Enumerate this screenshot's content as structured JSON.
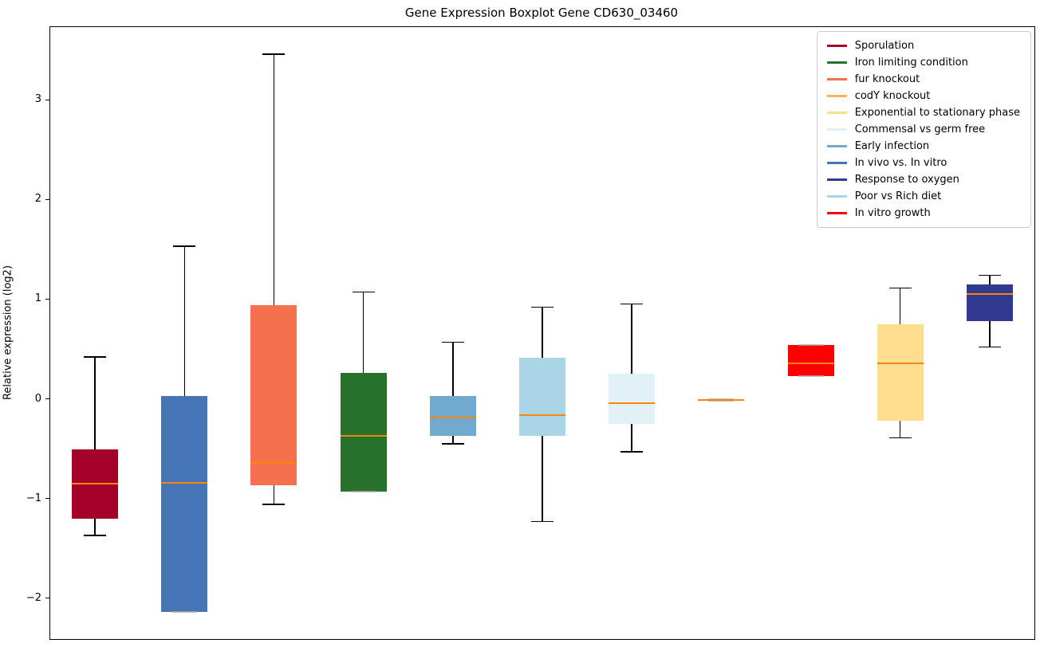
{
  "figure": {
    "title": "Gene Expression Boxplot Gene CD630_03460",
    "ylabel": "Relative expression (log2)"
  },
  "chart_data": {
    "type": "boxplot",
    "title": "Gene Expression Boxplot Gene CD630_03460",
    "xlabel": "",
    "ylabel": "Relative expression (log2)",
    "ylim": [
      -2.41,
      3.73
    ],
    "yticks": [
      3,
      2,
      1,
      0,
      -1,
      -2
    ],
    "x_tick_labels": [],
    "grid": false,
    "legend_position": "upper right",
    "median_color": "#FF840E",
    "whisker_color": "#000000",
    "series": [
      {
        "name": "Sporulation",
        "color": "#A50229",
        "whislo": -1.37,
        "q1": -1.2,
        "med": -0.85,
        "q3": -0.51,
        "whishi": 0.42
      },
      {
        "name": "In vivo vs. In vitro",
        "color": "#4575B4",
        "whislo": -2.14,
        "q1": -2.14,
        "med": -0.84,
        "q3": 0.03,
        "whishi": 1.53
      },
      {
        "name": "fur knockout",
        "color": "#F4714B",
        "whislo": -1.06,
        "q1": -0.87,
        "med": -0.64,
        "q3": 0.94,
        "whishi": 3.46
      },
      {
        "name": "Iron limiting condition",
        "color": "#26722B",
        "whislo": -0.93,
        "q1": -0.93,
        "med": -0.37,
        "q3": 0.26,
        "whishi": 1.07
      },
      {
        "name": "Early infection",
        "color": "#72A9CE",
        "whislo": -0.45,
        "q1": -0.37,
        "med": -0.19,
        "q3": 0.03,
        "whishi": 0.57
      },
      {
        "name": "Poor vs Rich diet",
        "color": "#A9D5E6",
        "whislo": -1.23,
        "q1": -0.37,
        "med": -0.16,
        "q3": 0.41,
        "whishi": 0.92
      },
      {
        "name": "Commensal vs germ free",
        "color": "#E2F1F8",
        "whislo": -0.53,
        "q1": -0.25,
        "med": -0.04,
        "q3": 0.25,
        "whishi": 0.95
      },
      {
        "name": "codY knockout",
        "color": "#FDAE61",
        "whislo": -0.02,
        "q1": -0.02,
        "med": -0.01,
        "q3": 0.0,
        "whishi": 0.0
      },
      {
        "name": "In vitro growth",
        "color": "#FE0000",
        "whislo": 0.23,
        "q1": 0.23,
        "med": 0.36,
        "q3": 0.54,
        "whishi": 0.54
      },
      {
        "name": "Exponential to stationary phase",
        "color": "#FDDE8E",
        "whislo": -0.39,
        "q1": -0.22,
        "med": 0.36,
        "q3": 0.75,
        "whishi": 1.11
      },
      {
        "name": "Response to oxygen",
        "color": "#323A90",
        "whislo": 0.52,
        "q1": 0.78,
        "med": 1.05,
        "q3": 1.15,
        "whishi": 1.24
      }
    ],
    "legend": [
      {
        "label": "Sporulation",
        "color": "#A50229"
      },
      {
        "label": "Iron limiting condition",
        "color": "#26722B"
      },
      {
        "label": "fur knockout",
        "color": "#F4714B"
      },
      {
        "label": "codY knockout",
        "color": "#FDAE61"
      },
      {
        "label": "Exponential to stationary phase",
        "color": "#FDDE8E"
      },
      {
        "label": "Commensal vs germ free",
        "color": "#E2F1F8"
      },
      {
        "label": "Early infection",
        "color": "#72A9CE"
      },
      {
        "label": "In vivo vs. In vitro",
        "color": "#4575B4"
      },
      {
        "label": "Response to oxygen",
        "color": "#323A90"
      },
      {
        "label": "Poor vs Rich diet",
        "color": "#A9D5E6"
      },
      {
        "label": "In vitro growth",
        "color": "#FE0000"
      }
    ]
  }
}
